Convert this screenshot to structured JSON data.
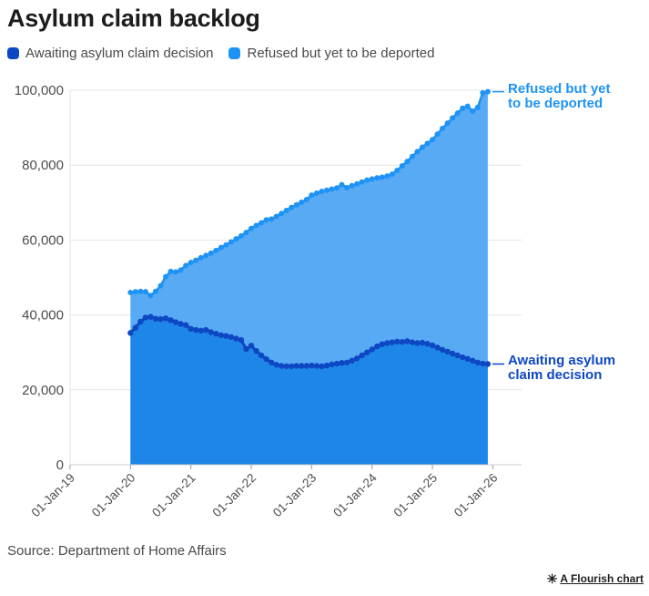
{
  "header": {
    "title": "Asylum claim backlog"
  },
  "legend": {
    "items": [
      {
        "label": "Awaiting asylum claim decision",
        "color": "#0d47c3"
      },
      {
        "label": "Refused but yet to be deported",
        "color": "#1e93f5"
      }
    ]
  },
  "annotations": {
    "refused": {
      "line1": "Refused but yet",
      "line2": "to be deported",
      "color": "#1e93f5"
    },
    "awaiting": {
      "line1": "Awaiting asylum",
      "line2": "claim decision",
      "color": "#0d47c3"
    }
  },
  "footer": {
    "source": "Source: Department of Home Affairs",
    "credit_icon": "✳",
    "credit_label": "A Flourish chart"
  },
  "chart_data": {
    "type": "area",
    "stacked": true,
    "title": "Asylum claim backlog",
    "x_start_label": "01-Jan-20",
    "x_interval": "monthly",
    "x_axis_tick_labels": [
      "01-Jan-19",
      "01-Jan-20",
      "01-Jan-21",
      "01-Jan-22",
      "01-Jan-23",
      "01-Jan-24",
      "01-Jan-25",
      "01-Jan-26"
    ],
    "x_start_at_tick": 1,
    "points_per_tick_interval": 12,
    "y_ticks": [
      0,
      20000,
      40000,
      60000,
      80000,
      100000
    ],
    "y_tick_labels": [
      "0",
      "20,000",
      "40,000",
      "60,000",
      "80,000",
      "100,000"
    ],
    "ylim": [
      0,
      100000
    ],
    "grid": "horizontal",
    "legend_position": "top-left",
    "marker": "dot",
    "series": [
      {
        "name": "Awaiting asylum claim decision",
        "line_color": "#0d47c3",
        "fill_color": "#1e86e8",
        "values": [
          35200,
          36600,
          38200,
          39300,
          39500,
          39000,
          38900,
          39100,
          38600,
          38100,
          37600,
          37300,
          36300,
          36000,
          35800,
          36000,
          35400,
          35000,
          34600,
          34400,
          34100,
          33700,
          33300,
          30900,
          31800,
          30400,
          29200,
          28200,
          27300,
          26700,
          26400,
          26300,
          26300,
          26400,
          26400,
          26400,
          26500,
          26400,
          26300,
          26500,
          26800,
          27000,
          27200,
          27300,
          27800,
          28400,
          29200,
          30000,
          30800,
          31600,
          32200,
          32500,
          32700,
          32900,
          32800,
          33000,
          32700,
          32500,
          32600,
          32300,
          31900,
          31300,
          30700,
          30200,
          29700,
          29200,
          28700,
          28300,
          27800,
          27300,
          27000,
          26900
        ]
      },
      {
        "name": "Refused but yet to be deported",
        "line_color": "#1e93f5",
        "fill_color": "#58aaf5",
        "values": [
          10800,
          9600,
          8100,
          6900,
          5700,
          7300,
          8900,
          11100,
          13000,
          13400,
          14400,
          15900,
          17700,
          18600,
          19500,
          19900,
          21100,
          22200,
          23400,
          24300,
          25400,
          26600,
          27800,
          31100,
          31300,
          33500,
          35400,
          37200,
          38300,
          39600,
          40700,
          41600,
          42400,
          43000,
          43700,
          44400,
          45500,
          46100,
          46700,
          46800,
          46800,
          46900,
          47600,
          46700,
          46700,
          46600,
          46300,
          46000,
          45500,
          45000,
          44600,
          44600,
          44900,
          45700,
          47000,
          48000,
          49600,
          51100,
          52200,
          53500,
          54900,
          57000,
          59100,
          61000,
          62900,
          64700,
          66500,
          67400,
          66600,
          68100,
          72300,
          72700
        ]
      }
    ]
  }
}
